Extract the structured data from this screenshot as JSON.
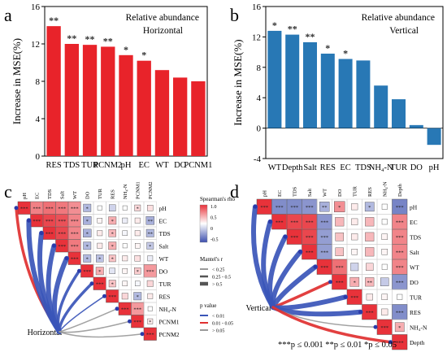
{
  "panels": {
    "a": "a",
    "b": "b",
    "c": "c",
    "d": "d"
  },
  "chart_data": [
    {
      "type": "bar",
      "panel": "a",
      "title": "Relative abundance",
      "subtitle": "Horizontal",
      "ylabel": "Increase in MSE(%)",
      "xlabel": "",
      "ylim": [
        0,
        16
      ],
      "yticks": [
        "0",
        "4",
        "8",
        "12",
        "16"
      ],
      "color": "#e8232a",
      "categories": [
        "RES",
        "TDS",
        "TUR",
        "PCNM2",
        "pH",
        "EC",
        "WT",
        "DO",
        "PCNM1"
      ],
      "values": [
        13.9,
        12.0,
        11.9,
        11.7,
        10.8,
        10.2,
        9.2,
        8.4,
        8.0
      ],
      "sig": [
        "**",
        "**",
        "**",
        "**",
        "*",
        "*",
        "",
        "",
        ""
      ]
    },
    {
      "type": "bar",
      "panel": "b",
      "title": "Relative abundance",
      "subtitle": "Vertical",
      "ylabel": "Increase in MSE(%)",
      "xlabel": "",
      "ylim": [
        -4,
        16
      ],
      "yticks": [
        "-4",
        "0",
        "4",
        "8",
        "12",
        "16"
      ],
      "color": "#2878b5",
      "categories": [
        "WT",
        "Depth",
        "Salt",
        "RES",
        "EC",
        "TDS",
        "NH₄-N",
        "TUR",
        "DO",
        "pH"
      ],
      "values": [
        12.8,
        12.3,
        11.3,
        9.8,
        9.1,
        8.9,
        5.6,
        3.8,
        0.4,
        -2.2
      ],
      "sig": [
        "*",
        "**",
        "**",
        "*",
        "*",
        "",
        "",
        "",
        "",
        ""
      ]
    },
    {
      "type": "heatmap",
      "panel": "c",
      "label": "Horizontal",
      "variables": [
        "pH",
        "EC",
        "TDS",
        "Salt",
        "WT",
        "DO",
        "TUR",
        "RES",
        "NH₄-N",
        "PCNM1",
        "PCNM2"
      ],
      "cells": [
        [
          1.0,
          0.62,
          0.7,
          0.66,
          0.55,
          -0.4,
          0.0,
          -0.25,
          0.0,
          0.2,
          0.15
        ],
        [
          0,
          1.0,
          0.9,
          0.85,
          0.6,
          -0.45,
          0.05,
          0.4,
          -0.1,
          0.1,
          -0.45
        ],
        [
          0,
          0,
          1.0,
          0.9,
          0.6,
          -0.45,
          0.1,
          0.35,
          -0.05,
          0.1,
          -0.4
        ],
        [
          0,
          0,
          0,
          1.0,
          0.65,
          -0.4,
          0.1,
          0.4,
          0.0,
          0.05,
          -0.3
        ],
        [
          0,
          0,
          0,
          0,
          1.0,
          -0.4,
          -0.35,
          0.3,
          0.1,
          0.15,
          -0.1
        ],
        [
          0,
          0,
          0,
          0,
          0,
          1.0,
          0.4,
          -0.15,
          0.05,
          0.25,
          0.5
        ],
        [
          0,
          0,
          0,
          0,
          0,
          0,
          1.0,
          0.3,
          0.05,
          -0.05,
          0.2
        ],
        [
          0,
          0,
          0,
          0,
          0,
          0,
          0,
          1.0,
          0.2,
          -0.4,
          0.1
        ],
        [
          0,
          0,
          0,
          0,
          0,
          0,
          0,
          0,
          1.0,
          0.5,
          0.0
        ],
        [
          0,
          0,
          0,
          0,
          0,
          0,
          0,
          0,
          0,
          1.0,
          0.1
        ],
        [
          0,
          0,
          0,
          0,
          0,
          0,
          0,
          0,
          0,
          0,
          1.0
        ]
      ],
      "stars": [
        [
          "***",
          "***",
          "***",
          "***",
          "***",
          "*",
          "",
          "",
          "",
          "*",
          ""
        ],
        [
          "",
          "***",
          "***",
          "***",
          "***",
          "*",
          "",
          "*",
          "",
          "",
          "**"
        ],
        [
          "",
          "",
          "***",
          "***",
          "***",
          "*",
          "",
          "*",
          "",
          "",
          "**"
        ],
        [
          "",
          "",
          "",
          "***",
          "***",
          "*",
          "",
          "*",
          "",
          "",
          "*"
        ],
        [
          "",
          "",
          "",
          "",
          "***",
          "*",
          "*",
          "*",
          "",
          "",
          ""
        ],
        [
          "",
          "",
          "",
          "",
          "",
          "***",
          "*",
          "",
          "",
          "*",
          "***"
        ],
        [
          "",
          "",
          "",
          "",
          "",
          "",
          "***",
          "*",
          "",
          "",
          ""
        ],
        [
          "",
          "",
          "",
          "",
          "",
          "",
          "",
          "***",
          "",
          "*",
          ""
        ],
        [
          "",
          "",
          "",
          "",
          "",
          "",
          "",
          "",
          "***",
          "***",
          ""
        ],
        [
          "",
          "",
          "",
          "",
          "",
          "",
          "",
          "",
          "",
          "***",
          "*"
        ],
        [
          "",
          "",
          "",
          "",
          "",
          "",
          "",
          "",
          "",
          "",
          "***"
        ]
      ],
      "links": [
        {
          "to": "pH",
          "r": "0.25-0.5",
          "p": "0.01-0.05"
        },
        {
          "to": "EC",
          "r": ">0.5",
          "p": "<0.01"
        },
        {
          "to": "TDS",
          "r": ">0.5",
          "p": "<0.01"
        },
        {
          "to": "Salt",
          "r": ">0.5",
          "p": "<0.01"
        },
        {
          "to": "WT",
          "r": ">0.5",
          "p": "<0.01"
        },
        {
          "to": "DO",
          "r": "0.25-0.5",
          "p": "<0.01"
        },
        {
          "to": "TUR",
          "r": "0.25-0.5",
          "p": "<0.01"
        },
        {
          "to": "RES",
          "r": "<0.25",
          "p": "<0.01"
        },
        {
          "to": "NH₄-N",
          "r": "<0.25",
          "p": ">0.05"
        },
        {
          "to": "PCNM1",
          "r": "<0.25",
          "p": ">0.05"
        },
        {
          "to": "PCNM2",
          "r": "<0.25",
          "p": ">0.05"
        }
      ]
    },
    {
      "type": "heatmap",
      "panel": "d",
      "label": "Vertical",
      "variables": [
        "pH",
        "EC",
        "TDS",
        "Salt",
        "WT",
        "DO",
        "TUR",
        "RES",
        "NH₄-N",
        "Depth"
      ],
      "cells": [
        [
          1.0,
          -0.65,
          -0.65,
          -0.6,
          -0.45,
          0.55,
          0.1,
          -0.4,
          0.0,
          -0.7
        ],
        [
          0,
          1.0,
          0.9,
          0.9,
          -0.6,
          0.35,
          0.1,
          0.35,
          0.0,
          0.6
        ],
        [
          0,
          0,
          1.0,
          0.9,
          -0.55,
          0.3,
          0.1,
          0.35,
          0.05,
          0.6
        ],
        [
          0,
          0,
          0,
          1.0,
          -0.55,
          0.3,
          0.05,
          0.35,
          0.05,
          0.6
        ],
        [
          0,
          0,
          0,
          0,
          1.0,
          0.7,
          -0.25,
          0.2,
          0.0,
          0.6
        ],
        [
          0,
          0,
          0,
          0,
          0,
          1.0,
          0.4,
          0.35,
          -0.3,
          -0.6
        ],
        [
          0,
          0,
          0,
          0,
          0,
          0,
          1.0,
          0.1,
          0.05,
          0.0
        ],
        [
          0,
          0,
          0,
          0,
          0,
          0,
          0,
          1.0,
          0.1,
          -0.65
        ],
        [
          0,
          0,
          0,
          0,
          0,
          0,
          0,
          0,
          1.0,
          0.4
        ],
        [
          0,
          0,
          0,
          0,
          0,
          0,
          0,
          0,
          0,
          1.0
        ]
      ],
      "stars": [
        [
          "***",
          "***",
          "***",
          "***",
          "**",
          "*",
          "",
          "*",
          "",
          "***"
        ],
        [
          "",
          "***",
          "***",
          "***",
          "***",
          "",
          "",
          "",
          "",
          "***"
        ],
        [
          "",
          "",
          "***",
          "***",
          "***",
          "",
          "",
          "",
          "",
          "***"
        ],
        [
          "",
          "",
          "",
          "***",
          "***",
          "",
          "",
          "",
          "",
          "***"
        ],
        [
          "",
          "",
          "",
          "",
          "***",
          "***",
          "",
          "",
          "",
          "***"
        ],
        [
          "",
          "",
          "",
          "",
          "",
          "***",
          "*",
          "**",
          "",
          "***"
        ],
        [
          "",
          "",
          "",
          "",
          "",
          "",
          "***",
          "",
          "",
          ""
        ],
        [
          "",
          "",
          "",
          "",
          "",
          "",
          "",
          "***",
          "",
          "***"
        ],
        [
          "",
          "",
          "",
          "",
          "",
          "",
          "",
          "",
          "***",
          "*"
        ],
        [
          "",
          "",
          "",
          "",
          "",
          "",
          "",
          "",
          "",
          "***"
        ]
      ],
      "links": [
        {
          "to": "pH",
          "r": ">0.5",
          "p": "<0.01"
        },
        {
          "to": "EC",
          "r": ">0.5",
          "p": "<0.01"
        },
        {
          "to": "TDS",
          "r": ">0.5",
          "p": "<0.01"
        },
        {
          "to": "Salt",
          "r": ">0.5",
          "p": "<0.01"
        },
        {
          "to": "WT",
          "r": ">0.5",
          "p": "<0.01"
        },
        {
          "to": "DO",
          "r": "0.25-0.5",
          "p": "0.01-0.05"
        },
        {
          "to": "TUR",
          "r": ">0.5",
          "p": "<0.01"
        },
        {
          "to": "RES",
          "r": ">0.5",
          "p": "<0.01"
        },
        {
          "to": "NH₄-N",
          "r": "<0.25",
          "p": ">0.05"
        },
        {
          "to": "Depth",
          "r": "0.25-0.5",
          "p": "0.01-0.05"
        }
      ]
    }
  ],
  "legend": {
    "rho_title": "Spearman's rho",
    "rho_ticks": [
      "1.0",
      "0.5",
      "0",
      "-0.5"
    ],
    "mantel_title": "Mantel's r",
    "mantel_items": [
      "< 0.25",
      "0.25 - 0.5",
      "> 0.5"
    ],
    "p_title": "p value",
    "p_items": [
      "< 0.01",
      "0.01 - 0.05",
      "> 0.05"
    ],
    "footnote": "***p ≤ 0.001  **p ≤ 0.01 *p ≤ 0.05"
  },
  "colors": {
    "red": "#e8232a",
    "blue": "#2878b5",
    "link_strong": "#3a55b8",
    "link_mid": "#e03030",
    "link_weak": "#9a9a9a",
    "cell_pos": "#e8323a",
    "cell_neg": "#3d4fae"
  }
}
